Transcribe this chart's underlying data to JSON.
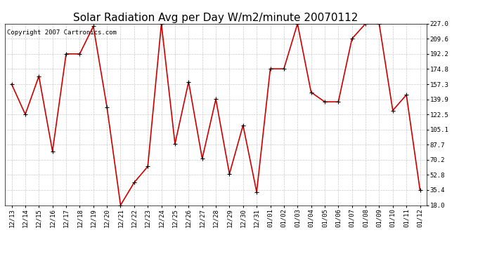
{
  "title": "Solar Radiation Avg per Day W/m2/minute 20070112",
  "copyright_text": "Copyright 2007 Cartronics.com",
  "labels": [
    "12/13",
    "12/14",
    "12/15",
    "12/16",
    "12/17",
    "12/18",
    "12/19",
    "12/20",
    "12/21",
    "12/22",
    "12/23",
    "12/24",
    "12/25",
    "12/26",
    "12/27",
    "12/28",
    "12/29",
    "12/30",
    "12/31",
    "01/01",
    "01/02",
    "01/03",
    "01/04",
    "01/05",
    "01/06",
    "01/07",
    "01/08",
    "01/09",
    "01/10",
    "01/11",
    "01/12"
  ],
  "values": [
    157.3,
    122.5,
    166.5,
    80.0,
    192.2,
    192.2,
    224.0,
    131.0,
    18.0,
    44.0,
    62.5,
    227.0,
    88.5,
    160.0,
    71.5,
    140.0,
    54.0,
    110.0,
    33.0,
    175.0,
    175.0,
    227.0,
    148.0,
    137.0,
    137.0,
    209.6,
    227.0,
    227.0,
    127.0,
    145.0,
    35.4
  ],
  "line_color": "#cc0000",
  "marker_color": "#000000",
  "background_color": "#ffffff",
  "plot_bg_color": "#ffffff",
  "grid_color": "#bbbbbb",
  "yticks": [
    18.0,
    35.4,
    52.8,
    70.2,
    87.7,
    105.1,
    122.5,
    139.9,
    157.3,
    174.8,
    192.2,
    209.6,
    227.0
  ],
  "ylim": [
    18.0,
    227.0
  ],
  "title_fontsize": 11,
  "copyright_fontsize": 6.5,
  "tick_fontsize": 6.5,
  "figwidth": 6.9,
  "figheight": 3.75,
  "dpi": 100
}
